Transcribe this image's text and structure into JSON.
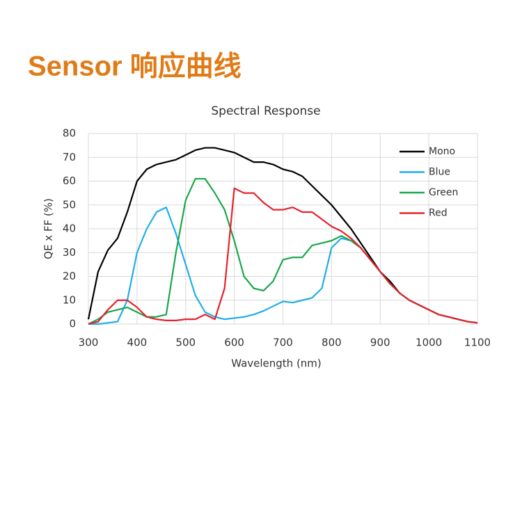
{
  "header": {
    "title": "Sensor 响应曲线"
  },
  "chart_data": {
    "type": "line",
    "title": "Spectral Response",
    "x_label": "Wavelength (nm)",
    "y_label": "QE x FF (%)",
    "x": [
      300,
      320,
      340,
      360,
      380,
      400,
      420,
      440,
      460,
      480,
      500,
      520,
      540,
      560,
      580,
      600,
      620,
      640,
      660,
      680,
      700,
      720,
      740,
      760,
      780,
      800,
      820,
      840,
      860,
      880,
      900,
      920,
      940,
      960,
      980,
      1000,
      1020,
      1040,
      1060,
      1080,
      1100
    ],
    "series": [
      {
        "name": "Mono",
        "color": "#000000",
        "values": [
          2,
          22,
          31,
          36,
          47,
          60,
          65,
          67,
          68,
          69,
          71,
          73,
          74,
          74,
          73,
          72,
          70,
          68,
          68,
          67,
          65,
          64,
          62,
          58,
          54,
          50,
          45,
          40,
          34,
          28,
          22,
          18,
          13,
          10,
          8,
          6,
          4,
          3,
          2,
          1,
          0.5
        ]
      },
      {
        "name": "Blue",
        "color": "#1eaee8",
        "values": [
          0,
          0,
          0.5,
          1,
          10,
          30,
          40,
          47,
          49,
          38,
          25,
          12,
          5,
          3,
          2,
          2.5,
          3,
          4,
          5.5,
          7.5,
          9.5,
          9,
          10,
          11,
          15,
          32,
          36,
          35,
          32,
          27,
          22,
          17,
          13,
          10,
          8,
          6,
          4,
          3,
          2,
          1,
          0.5
        ]
      },
      {
        "name": "Green",
        "color": "#1aa64a",
        "values": [
          0,
          2,
          5,
          6,
          7,
          5,
          3,
          3,
          4,
          30,
          52,
          61,
          61,
          55,
          48,
          35,
          20,
          15,
          14,
          18,
          27,
          28,
          28,
          33,
          34,
          35,
          37,
          35,
          32,
          27,
          22,
          17,
          13,
          10,
          8,
          6,
          4,
          3,
          2,
          1,
          0.5
        ]
      },
      {
        "name": "Red",
        "color": "#e8202a",
        "values": [
          0,
          1,
          6,
          10,
          10,
          7,
          3,
          2,
          1.5,
          1.5,
          2,
          2,
          4,
          2,
          15,
          57,
          55,
          55,
          51,
          48,
          48,
          49,
          47,
          47,
          44,
          41,
          39,
          36,
          32,
          27,
          22,
          17,
          13,
          10,
          8,
          6,
          4,
          3,
          2,
          1,
          0.5
        ]
      }
    ],
    "xlim": [
      300,
      1100
    ],
    "xticks": [
      300,
      400,
      500,
      600,
      700,
      800,
      900,
      1000,
      1100
    ],
    "ylim": [
      0,
      80
    ],
    "yticks": [
      0,
      10,
      20,
      30,
      40,
      50,
      60,
      70,
      80
    ],
    "grid": true,
    "legend": "upper right"
  }
}
